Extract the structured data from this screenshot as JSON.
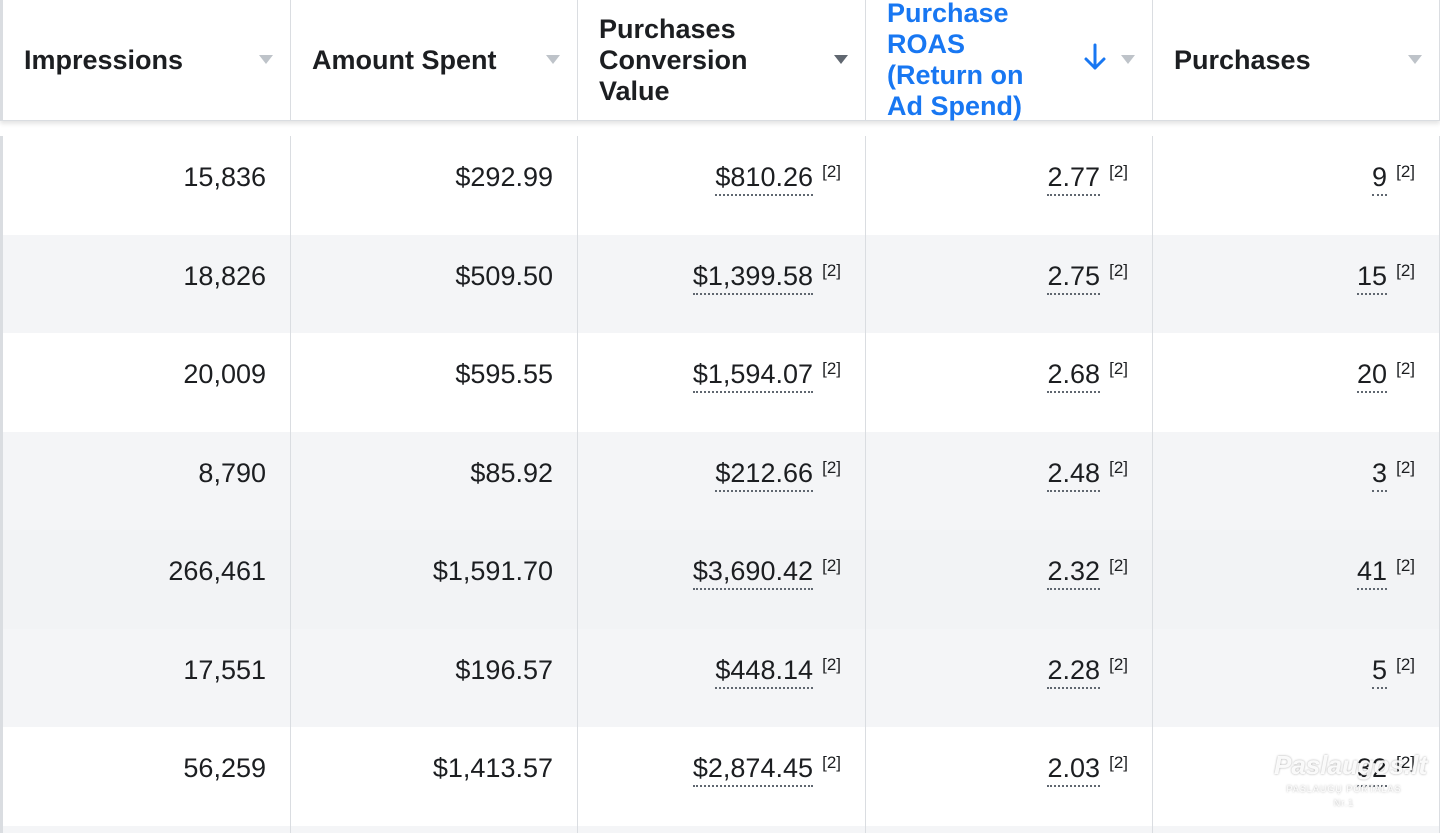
{
  "columns": [
    {
      "label": "Impressions",
      "sorted": false
    },
    {
      "label": "Amount Spent",
      "sorted": false
    },
    {
      "label": "Purchases Conversion Value",
      "sorted": false
    },
    {
      "label": "Purchase ROAS (Return on Ad Spend)",
      "sorted": true,
      "sort_direction": "descending"
    },
    {
      "label": "Purchases",
      "sorted": false
    }
  ],
  "footnote_marker": "[2]",
  "rows": [
    {
      "impressions": "15,836",
      "amount_spent": "$292.99",
      "conversion_value": "$810.26",
      "roas": "2.77",
      "purchases": "9"
    },
    {
      "impressions": "18,826",
      "amount_spent": "$509.50",
      "conversion_value": "$1,399.58",
      "roas": "2.75",
      "purchases": "15"
    },
    {
      "impressions": "20,009",
      "amount_spent": "$595.55",
      "conversion_value": "$1,594.07",
      "roas": "2.68",
      "purchases": "20"
    },
    {
      "impressions": "8,790",
      "amount_spent": "$85.92",
      "conversion_value": "$212.66",
      "roas": "2.48",
      "purchases": "3"
    },
    {
      "impressions": "266,461",
      "amount_spent": "$1,591.70",
      "conversion_value": "$3,690.42",
      "roas": "2.32",
      "purchases": "41"
    },
    {
      "impressions": "17,551",
      "amount_spent": "$196.57",
      "conversion_value": "$448.14",
      "roas": "2.28",
      "purchases": "5"
    },
    {
      "impressions": "56,259",
      "amount_spent": "$1,413.57",
      "conversion_value": "$2,874.45",
      "roas": "2.03",
      "purchases": "32"
    }
  ],
  "watermark": {
    "brand": "Paslaugos.lt",
    "tagline": "PASLAUGŲ PORTALAS Nr.1"
  },
  "colors": {
    "sorted_header": "#1877f2",
    "text": "#1c1e21",
    "alt_row": "#f4f5f7",
    "border": "#dadde1"
  }
}
